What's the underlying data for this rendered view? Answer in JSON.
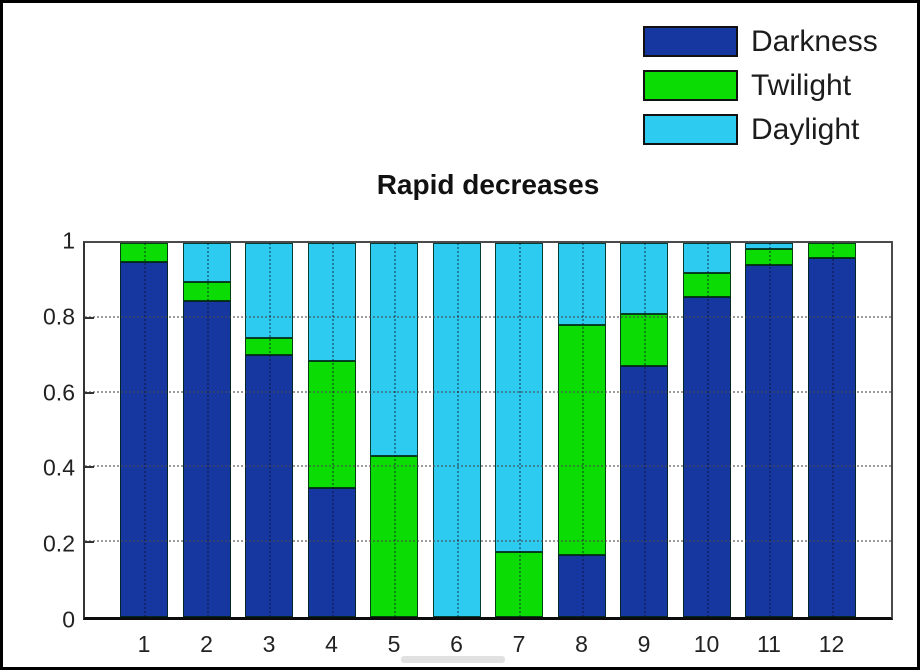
{
  "figure": {
    "title": "Rapid decreases",
    "background": "#ffffff",
    "frame_color": "#000000"
  },
  "legend": {
    "position": "top-right",
    "items": [
      {
        "label": "Darkness",
        "color": "#1637A0"
      },
      {
        "label": "Twilight",
        "color": "#0BDC04"
      },
      {
        "label": "Daylight",
        "color": "#2CCBEF"
      }
    ]
  },
  "chart_data": {
    "type": "bar",
    "stacked": true,
    "title": "Rapid decreases",
    "xlabel": "",
    "ylabel": "",
    "categories": [
      "1",
      "2",
      "3",
      "4",
      "5",
      "6",
      "7",
      "8",
      "9",
      "10",
      "11",
      "12"
    ],
    "series": [
      {
        "name": "Darkness",
        "color": "#1637A0",
        "values": [
          0.95,
          0.845,
          0.7,
          0.345,
          0.0,
          0.0,
          0.0,
          0.165,
          0.67,
          0.855,
          0.94,
          0.96
        ]
      },
      {
        "name": "Twilight",
        "color": "#0BDC04",
        "values": [
          0.05,
          0.05,
          0.045,
          0.34,
          0.43,
          0.0,
          0.175,
          0.615,
          0.14,
          0.065,
          0.045,
          0.04
        ]
      },
      {
        "name": "Daylight",
        "color": "#2CCBEF",
        "values": [
          0.0,
          0.105,
          0.255,
          0.315,
          0.57,
          1.0,
          0.825,
          0.22,
          0.19,
          0.08,
          0.015,
          0.0
        ]
      }
    ],
    "ylim": [
      0,
      1
    ],
    "yticks": [
      0,
      0.2,
      0.4,
      0.6,
      0.8,
      1
    ],
    "ytick_labels": [
      "0",
      "0.2",
      "0.4",
      "0.6",
      "0.8",
      "1"
    ],
    "grid": "dotted",
    "legend_position": "top-right",
    "colors": {
      "axis": "#3a3a3a",
      "grid": "#4b4b4b",
      "text": "#222222"
    }
  }
}
